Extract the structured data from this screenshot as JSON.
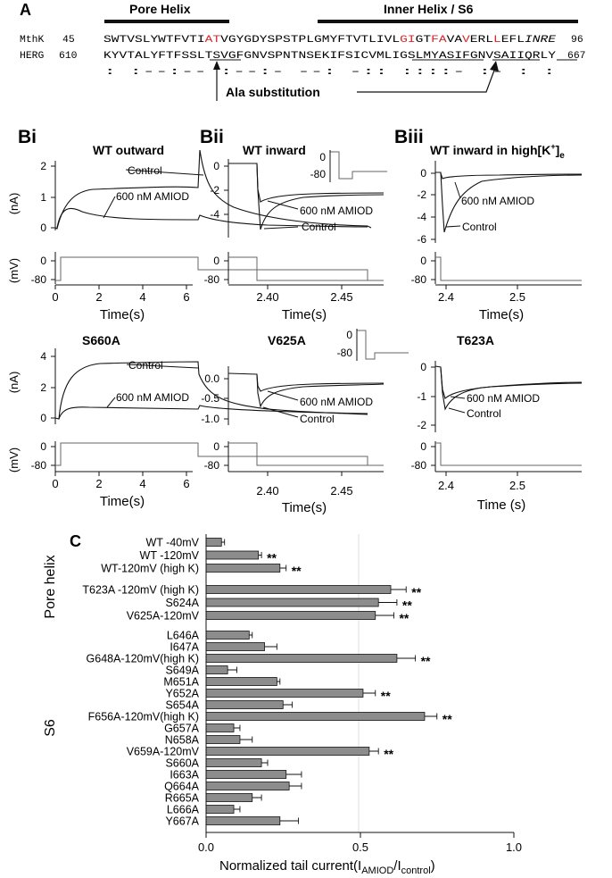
{
  "panels": {
    "a": {
      "letter": "A",
      "pore_helix_label": "Pore Helix",
      "inner_helix_label": "Inner Helix / S6",
      "mthk": {
        "name": "MthK",
        "start": "45",
        "end": "96",
        "seq_normal1": "SWTVSLYWTFVTI",
        "seq_red1": "AT",
        "seq_normal2": "VGYGDYSPSTPLGMYFTVTLIVL",
        "seq_red2": "GI",
        "seq_normal3": "GT",
        "seq_red3": "FA",
        "seq_normal4": "VA",
        "seq_red4": "V",
        "seq_normal5": "ERL",
        "seq_red5": "L",
        "seq_normal6": "EFL",
        "seq_italic": "INRE"
      },
      "herg": {
        "name": "HERG",
        "start": "610",
        "end": "667",
        "seq": "KYVTALYFTFSSLTSVGFGNVSPNTNSEKIFSICVMLIGSLMYASIFGNVSAIIQRLY"
      },
      "conservation": ":  :--:-- :--:-      --:       -:: ::::-    :-      :   :",
      "ala_label": "Ala substitution"
    },
    "bi": {
      "label": "Bi",
      "title": "WT outward",
      "control": "Control",
      "amiod": "600 nM AMIOD"
    },
    "bii": {
      "label": "Bii",
      "title": "WT inward",
      "control": "Control",
      "amiod": "600 nM AMIOD"
    },
    "biii": {
      "label": "Biii",
      "title_main": "WT inward in high[K",
      "title_sup": "+",
      "title_close": "]",
      "title_sub": "e",
      "control": "Control",
      "amiod": "600 nM AMIOD"
    },
    "s660a": {
      "title": "S660A",
      "control": "Control",
      "amiod": "600 nM AMIOD"
    },
    "v625a": {
      "title": "V625A",
      "control": "Control",
      "amiod": "600 nM AMIOD"
    },
    "t623a": {
      "title": "T623A",
      "control": "Control",
      "amiod": "600 nM AMIOD"
    },
    "c": {
      "letter": "C"
    }
  },
  "axes": {
    "current_unit": "(nA)",
    "voltage_unit": "(mV)",
    "time_s": "Time(s)",
    "time_s_spaced": "Time (s)",
    "bi": {
      "yticks": [
        "0",
        "1",
        "2"
      ],
      "xticks": [
        "0",
        "2",
        "4",
        "6"
      ]
    },
    "bii": {
      "yticks": [
        "0",
        "-2",
        "-4"
      ],
      "xticks": [
        "2.40",
        "2.45"
      ]
    },
    "biii": {
      "yticks": [
        "0",
        "-2",
        "-4",
        "-6"
      ],
      "xticks": [
        "2.4",
        "2.5"
      ]
    },
    "s660a": {
      "yticks": [
        "0",
        "2",
        "4"
      ],
      "xticks": [
        "0",
        "2",
        "4",
        "6"
      ]
    },
    "v625a": {
      "yticks": [
        "0.0",
        "-0.5",
        "-1.0"
      ],
      "xticks": [
        "2.40",
        "2.45"
      ]
    },
    "t623a": {
      "yticks": [
        "0",
        "-1",
        "-2"
      ],
      "xticks": [
        "2.4",
        "2.5"
      ]
    },
    "mv": {
      "zero": "0",
      "neg80": "-80"
    }
  },
  "chart_data": {
    "type": "bar",
    "orientation": "horizontal",
    "xlabel_main": "Normalized tail current(I",
    "xlabel_sub1": "AMIOD",
    "xlabel_mid": "/I",
    "xlabel_sub2": "control",
    "xlabel_close": ")",
    "xlim": [
      0,
      1
    ],
    "xticks": [
      "0.0",
      "0.5",
      "1.0"
    ],
    "group_labels": [
      "Pore helix",
      "S6"
    ],
    "categories": [
      "WT -40mV",
      "WT -120mV",
      "WT-120mV (high K)",
      "T623A -120mV (high K)",
      "S624A",
      "V625A-120mV",
      "L646A",
      "I647A",
      "G648A-120mV(high K)",
      "S649A",
      "M651A",
      "Y652A",
      "S654A",
      "F656A-120mV(high K)",
      "G657A",
      "N658A",
      "V659A-120mV",
      "S660A",
      "I663A",
      "Q664A",
      "R665A",
      "L666A",
      "Y667A"
    ],
    "values": [
      0.05,
      0.17,
      0.24,
      0.6,
      0.56,
      0.55,
      0.14,
      0.19,
      0.62,
      0.07,
      0.23,
      0.51,
      0.25,
      0.71,
      0.09,
      0.11,
      0.53,
      0.18,
      0.26,
      0.27,
      0.15,
      0.09,
      0.24
    ],
    "errors": [
      0.01,
      0.01,
      0.02,
      0.05,
      0.06,
      0.06,
      0.01,
      0.04,
      0.06,
      0.03,
      0.01,
      0.04,
      0.03,
      0.04,
      0.02,
      0.04,
      0.03,
      0.02,
      0.05,
      0.04,
      0.03,
      0.02,
      0.06
    ],
    "significance": [
      "",
      "**",
      "**",
      "**",
      "**",
      "**",
      "",
      "",
      "**",
      "",
      "",
      "**",
      "",
      "**",
      "",
      "",
      "**",
      "",
      "",
      "",
      "",
      "",
      ""
    ],
    "bar_color": "#8c8c8c"
  }
}
